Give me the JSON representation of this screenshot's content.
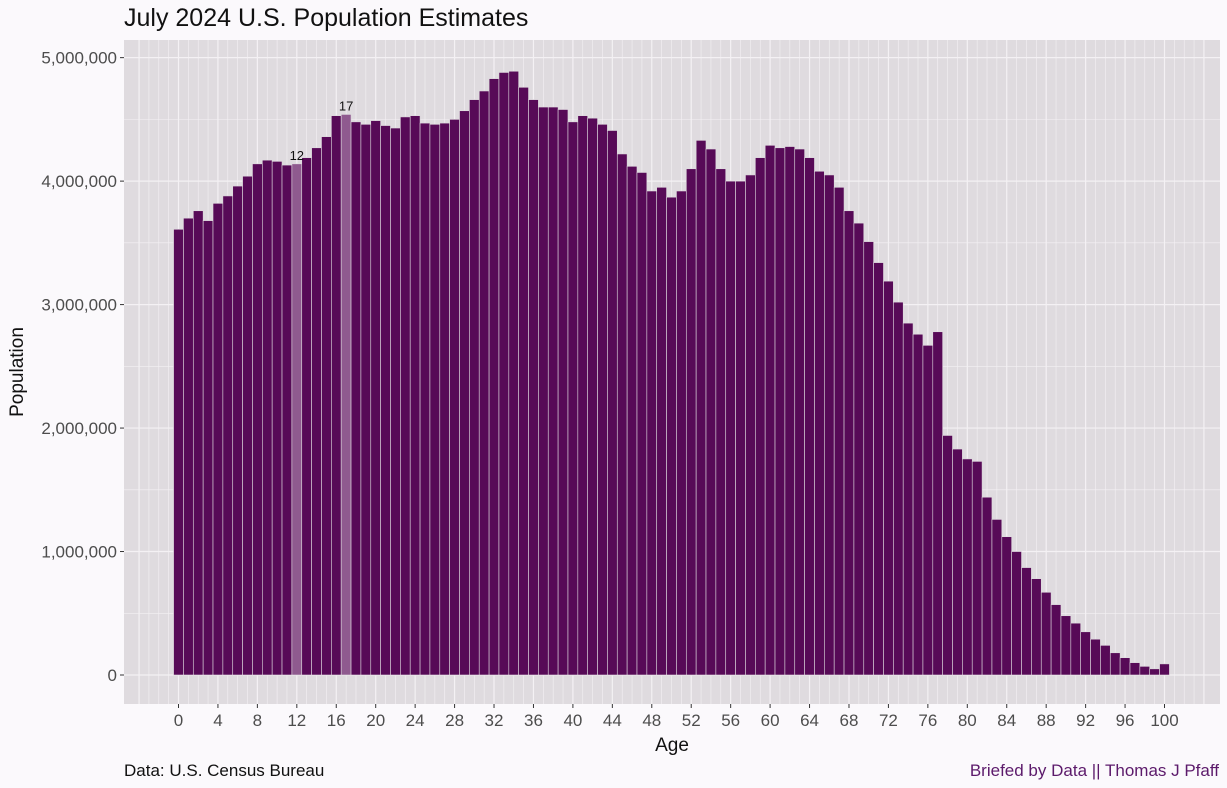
{
  "chart_data": {
    "type": "bar",
    "title": "July 2024 U.S. Population Estimates",
    "xlabel": "Age",
    "ylabel": "Population",
    "x": [
      0,
      1,
      2,
      3,
      4,
      5,
      6,
      7,
      8,
      9,
      10,
      11,
      12,
      13,
      14,
      15,
      16,
      17,
      18,
      19,
      20,
      21,
      22,
      23,
      24,
      25,
      26,
      27,
      28,
      29,
      30,
      31,
      32,
      33,
      34,
      35,
      36,
      37,
      38,
      39,
      40,
      41,
      42,
      43,
      44,
      45,
      46,
      47,
      48,
      49,
      50,
      51,
      52,
      53,
      54,
      55,
      56,
      57,
      58,
      59,
      60,
      61,
      62,
      63,
      64,
      65,
      66,
      67,
      68,
      69,
      70,
      71,
      72,
      73,
      74,
      75,
      76,
      77,
      78,
      79,
      80,
      81,
      82,
      83,
      84,
      85,
      86,
      87,
      88,
      89,
      90,
      91,
      92,
      93,
      94,
      95,
      96,
      97,
      98,
      99,
      100
    ],
    "values": [
      3610000,
      3700000,
      3760000,
      3680000,
      3820000,
      3880000,
      3960000,
      4040000,
      4140000,
      4170000,
      4160000,
      4130000,
      4140000,
      4190000,
      4270000,
      4360000,
      4530000,
      4540000,
      4480000,
      4460000,
      4490000,
      4450000,
      4430000,
      4520000,
      4530000,
      4470000,
      4460000,
      4470000,
      4500000,
      4570000,
      4660000,
      4730000,
      4830000,
      4880000,
      4890000,
      4760000,
      4660000,
      4600000,
      4600000,
      4580000,
      4480000,
      4530000,
      4510000,
      4460000,
      4410000,
      4220000,
      4120000,
      4070000,
      3920000,
      3950000,
      3870000,
      3920000,
      4100000,
      4330000,
      4260000,
      4100000,
      4000000,
      4000000,
      4050000,
      4190000,
      4290000,
      4270000,
      4280000,
      4260000,
      4190000,
      4080000,
      4050000,
      3950000,
      3760000,
      3660000,
      3510000,
      3340000,
      3190000,
      3020000,
      2850000,
      2760000,
      2670000,
      2780000,
      1940000,
      1830000,
      1750000,
      1730000,
      1440000,
      1260000,
      1120000,
      1000000,
      870000,
      780000,
      670000,
      570000,
      480000,
      420000,
      350000,
      290000,
      240000,
      180000,
      140000,
      100000,
      70000,
      50000,
      90000
    ],
    "xticks": [
      "0",
      "4",
      "8",
      "12",
      "16",
      "20",
      "24",
      "28",
      "32",
      "36",
      "40",
      "44",
      "48",
      "52",
      "56",
      "60",
      "64",
      "68",
      "72",
      "76",
      "80",
      "84",
      "88",
      "92",
      "96",
      "100"
    ],
    "yticks": [
      "0",
      "1,000,000",
      "2,000,000",
      "3,000,000",
      "4,000,000",
      "5,000,000"
    ],
    "ylim": [
      0,
      5000000
    ],
    "highlighted": [
      {
        "age": 12,
        "label": "12"
      },
      {
        "age": 17,
        "label": "17"
      }
    ],
    "colors": {
      "bar": "#570a57",
      "highlight": "#8f5a8f",
      "panel": "#dfdbdf",
      "grid": "#f4f1f4",
      "credit": "#5c1a6b"
    },
    "grid": true
  },
  "captions": {
    "source": "Data: U.S. Census Bureau",
    "credit": "Briefed by Data || Thomas J Pfaff"
  }
}
